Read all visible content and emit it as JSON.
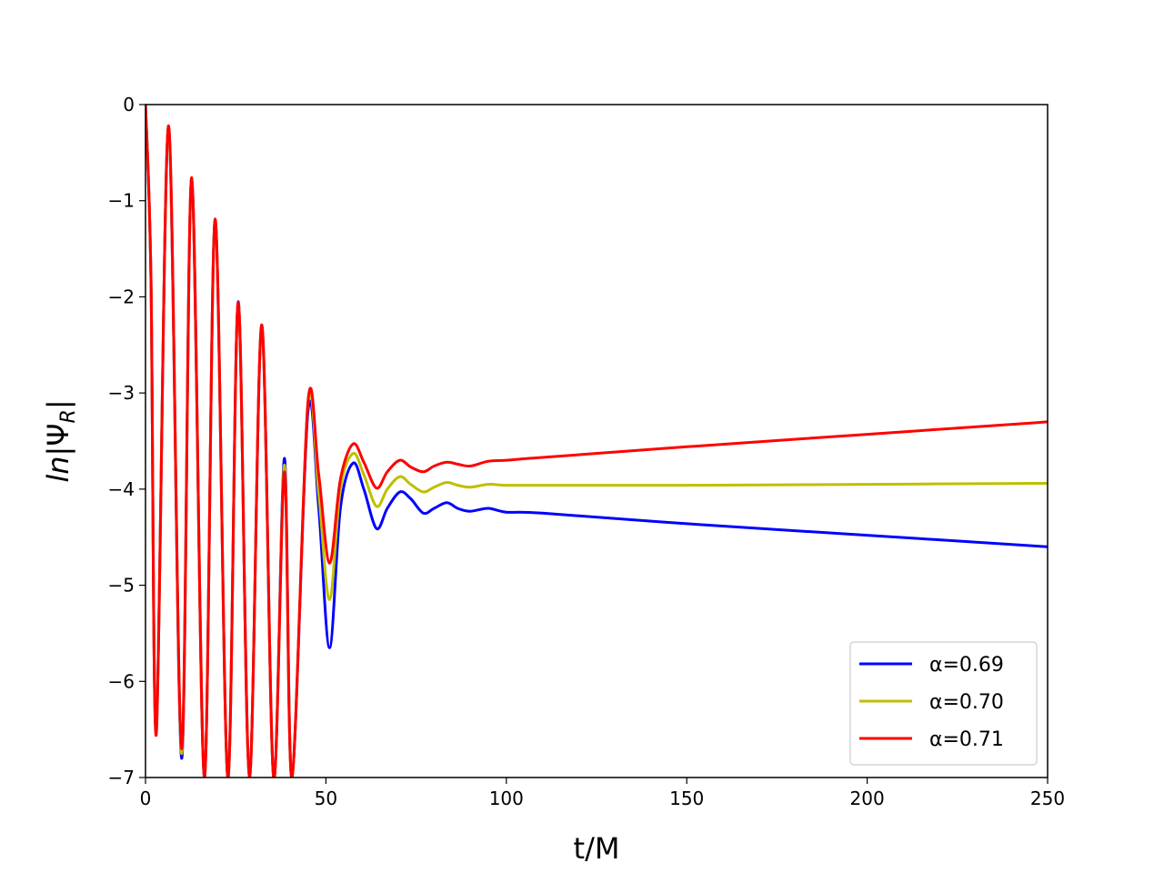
{
  "chart_data": {
    "type": "line",
    "title": "",
    "xlabel": "t/M",
    "ylabel_parts": {
      "prefix": "ln",
      "symbol": "|Ψ",
      "subscript": "R",
      "suffix": "|"
    },
    "xlim": [
      0,
      250
    ],
    "ylim": [
      -7,
      0
    ],
    "xticks": [
      0,
      50,
      100,
      150,
      200,
      250
    ],
    "xtick_labels": [
      "0",
      "50",
      "100",
      "150",
      "200",
      "250"
    ],
    "yticks": [
      0,
      -1,
      -2,
      -3,
      -4,
      -5,
      -6,
      -7
    ],
    "ytick_labels": [
      "0",
      "−1",
      "−2",
      "−3",
      "−4",
      "−5",
      "−6",
      "−7"
    ],
    "grid": false,
    "legend_position": "bottom-right",
    "series": [
      {
        "name": "α=0.69",
        "color": "#0000ff",
        "x": [
          0,
          1.5,
          3,
          6.4,
          10,
          12.8,
          16.3,
          19.3,
          22.8,
          25.7,
          28.8,
          32.2,
          35.5,
          38.5,
          40.6,
          45,
          48,
          51,
          54,
          57.5,
          60.5,
          64,
          67,
          70.5,
          73.5,
          77,
          80,
          83.5,
          86.5,
          90,
          95,
          100,
          110,
          150,
          200,
          250
        ],
        "y": [
          0,
          -1.8,
          -6.5,
          -0.23,
          -6.8,
          -0.77,
          -7.0,
          -1.21,
          -7.0,
          -2.05,
          -7.0,
          -2.31,
          -7.0,
          -3.68,
          -7.0,
          -3.2,
          -4.2,
          -5.65,
          -4.2,
          -3.73,
          -4.0,
          -4.41,
          -4.2,
          -4.03,
          -4.1,
          -4.25,
          -4.2,
          -4.14,
          -4.2,
          -4.23,
          -4.2,
          -4.24,
          -4.25,
          -4.36,
          -4.48,
          -4.6
        ]
      },
      {
        "name": "α=0.70",
        "color": "#bfbf00",
        "x": [
          0,
          1.5,
          3,
          6.4,
          10,
          12.8,
          16.3,
          19.3,
          22.8,
          25.7,
          28.8,
          32.2,
          35.5,
          38.5,
          40.6,
          45,
          48,
          51,
          54,
          57.5,
          60.5,
          64,
          67,
          70.5,
          73.5,
          77,
          80,
          83.5,
          86.5,
          90,
          95,
          100,
          110,
          150,
          200,
          250
        ],
        "y": [
          0,
          -1.8,
          -6.5,
          -0.23,
          -6.75,
          -0.77,
          -7.0,
          -1.2,
          -7.0,
          -2.06,
          -7.0,
          -2.3,
          -7.0,
          -3.75,
          -7.0,
          -3.12,
          -4.05,
          -5.15,
          -4.0,
          -3.63,
          -3.85,
          -4.18,
          -4.0,
          -3.87,
          -3.95,
          -4.03,
          -3.98,
          -3.93,
          -3.96,
          -3.98,
          -3.95,
          -3.96,
          -3.96,
          -3.96,
          -3.95,
          -3.94
        ]
      },
      {
        "name": "α=0.71",
        "color": "#ff0000",
        "x": [
          0,
          1.5,
          3,
          6.4,
          10,
          12.8,
          16.3,
          19.3,
          22.8,
          25.7,
          28.8,
          32.2,
          35.5,
          38.5,
          40.6,
          45,
          48,
          51,
          54,
          57.5,
          60.5,
          64,
          67,
          70.5,
          73.5,
          77,
          80,
          83.5,
          86.5,
          90,
          95,
          100,
          110,
          150,
          200,
          250
        ],
        "y": [
          0,
          -1.8,
          -6.55,
          -0.22,
          -6.7,
          -0.76,
          -7.0,
          -1.19,
          -7.0,
          -2.06,
          -7.0,
          -2.29,
          -7.0,
          -3.82,
          -7.0,
          -3.1,
          -3.85,
          -4.77,
          -3.9,
          -3.53,
          -3.72,
          -3.99,
          -3.82,
          -3.7,
          -3.77,
          -3.82,
          -3.76,
          -3.72,
          -3.74,
          -3.76,
          -3.71,
          -3.7,
          -3.67,
          -3.56,
          -3.43,
          -3.3
        ]
      }
    ]
  }
}
